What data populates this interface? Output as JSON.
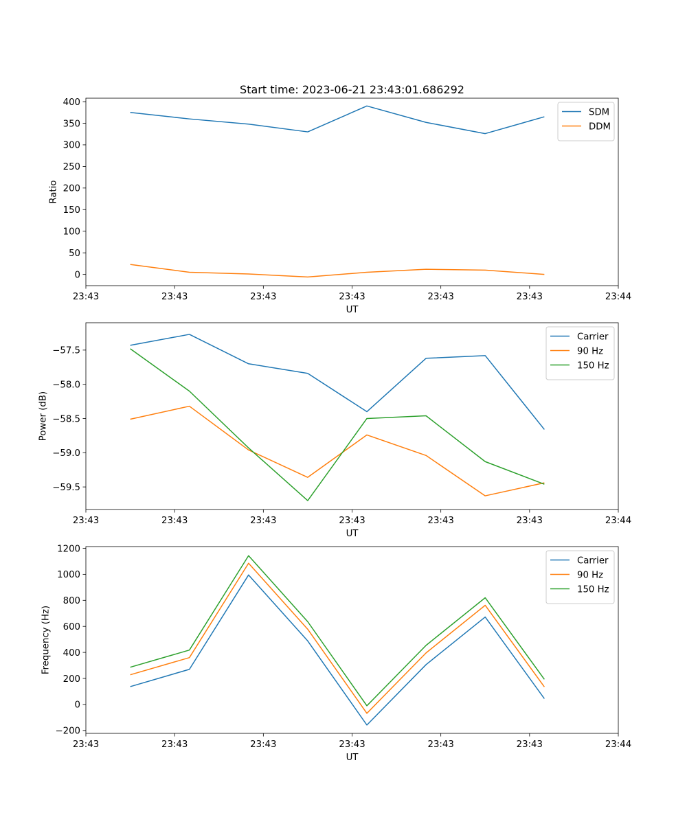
{
  "figure": {
    "title": "Start time: 2023-06-21 23:43:01.686292"
  },
  "chart_data": [
    {
      "type": "line",
      "title": "Start time: 2023-06-21 23:43:01.686292",
      "xlabel": "UT",
      "ylabel": "Ratio",
      "x": [
        1,
        2,
        3,
        4,
        5,
        6,
        7,
        8
      ],
      "xlim": [
        0.25,
        9.25
      ],
      "x_ticks": [
        0.25,
        1.75,
        3.25,
        4.75,
        6.25,
        7.75,
        9.25
      ],
      "x_tick_labels": [
        "23:43",
        "23:43",
        "23:43",
        "23:43",
        "23:43",
        "23:43",
        "23:44"
      ],
      "ylim": [
        -26,
        408
      ],
      "y_ticks": [
        0,
        50,
        100,
        150,
        200,
        250,
        300,
        350,
        400
      ],
      "y_tick_labels": [
        "0",
        "50",
        "100",
        "150",
        "200",
        "250",
        "300",
        "350",
        "400"
      ],
      "legend_position": "top-right",
      "grid": false,
      "series": [
        {
          "name": "SDM",
          "color": "#1f77b4",
          "values": [
            375,
            360,
            348,
            330,
            390,
            352,
            326,
            365
          ]
        },
        {
          "name": "DDM",
          "color": "#ff7f0e",
          "values": [
            23,
            5,
            1,
            -6,
            5,
            12,
            10,
            0
          ]
        }
      ]
    },
    {
      "type": "line",
      "xlabel": "UT",
      "ylabel": "Power (dB)",
      "x": [
        1,
        2,
        3,
        4,
        5,
        6,
        7,
        8
      ],
      "xlim": [
        0.25,
        9.25
      ],
      "x_ticks": [
        0.25,
        1.75,
        3.25,
        4.75,
        6.25,
        7.75,
        9.25
      ],
      "x_tick_labels": [
        "23:43",
        "23:43",
        "23:43",
        "23:43",
        "23:43",
        "23:43",
        "23:44"
      ],
      "ylim": [
        -59.83,
        -57.1
      ],
      "y_ticks": [
        -59.5,
        -59.0,
        -58.5,
        -58.0,
        -57.5
      ],
      "y_tick_labels": [
        "−59.5",
        "−59.0",
        "−58.5",
        "−58.0",
        "−57.5"
      ],
      "legend_position": "top-right",
      "grid": false,
      "series": [
        {
          "name": "Carrier",
          "color": "#1f77b4",
          "values": [
            -57.43,
            -57.27,
            -57.7,
            -57.84,
            -58.4,
            -57.62,
            -57.58,
            -58.66
          ]
        },
        {
          "name": "90 Hz",
          "color": "#ff7f0e",
          "values": [
            -58.51,
            -58.32,
            -58.96,
            -59.36,
            -58.74,
            -59.04,
            -59.63,
            -59.44
          ]
        },
        {
          "name": "150 Hz",
          "color": "#2ca02c",
          "values": [
            -57.48,
            -58.1,
            -58.93,
            -59.7,
            -58.5,
            -58.46,
            -59.13,
            -59.46
          ]
        }
      ]
    },
    {
      "type": "line",
      "xlabel": "UT",
      "ylabel": "Frequency (Hz)",
      "x": [
        1,
        2,
        3,
        4,
        5,
        6,
        7,
        8
      ],
      "xlim": [
        0.25,
        9.25
      ],
      "x_ticks": [
        0.25,
        1.75,
        3.25,
        4.75,
        6.25,
        7.75,
        9.25
      ],
      "x_tick_labels": [
        "23:43",
        "23:43",
        "23:43",
        "23:43",
        "23:43",
        "23:43",
        "23:44"
      ],
      "ylim": [
        -222,
        1213
      ],
      "y_ticks": [
        -200,
        0,
        200,
        400,
        600,
        800,
        1000,
        1200
      ],
      "y_tick_labels": [
        "−200",
        "0",
        "200",
        "400",
        "600",
        "800",
        "1000",
        "1200"
      ],
      "legend_position": "top-right",
      "grid": false,
      "series": [
        {
          "name": "Carrier",
          "color": "#1f77b4",
          "values": [
            137,
            270,
            995,
            488,
            -158,
            306,
            672,
            45
          ]
        },
        {
          "name": "90 Hz",
          "color": "#ff7f0e",
          "values": [
            228,
            360,
            1085,
            578,
            -68,
            396,
            762,
            135
          ]
        },
        {
          "name": "150 Hz",
          "color": "#2ca02c",
          "values": [
            286,
            418,
            1143,
            636,
            -10,
            454,
            820,
            193
          ]
        }
      ]
    }
  ]
}
